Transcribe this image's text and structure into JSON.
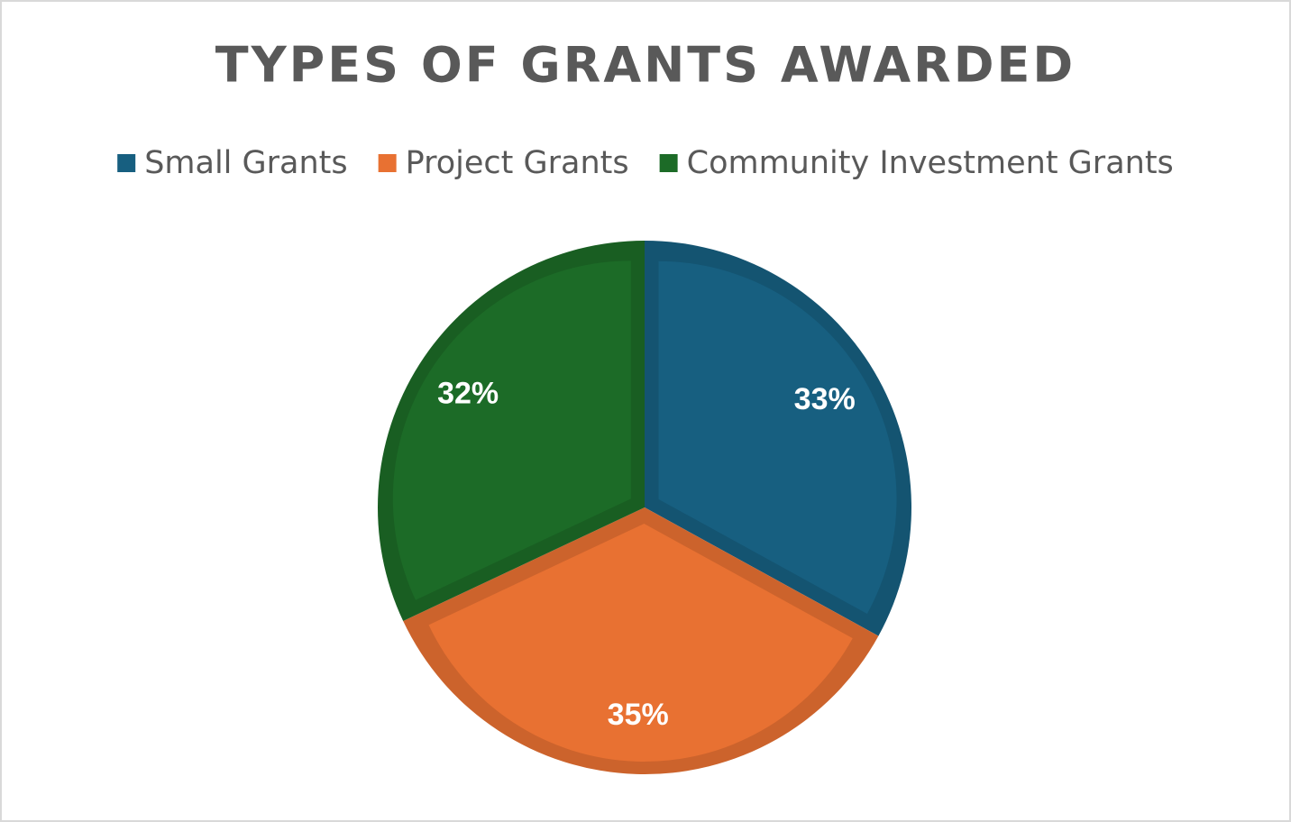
{
  "chart_data": {
    "type": "pie",
    "title": "TYPES OF GRANTS AWARDED",
    "categories": [
      "Small Grants",
      "Project Grants",
      "Community Investment Grants"
    ],
    "values": [
      33,
      35,
      32
    ],
    "value_labels": [
      "33%",
      "35%",
      "32%"
    ],
    "colors": [
      "#175f80",
      "#e87132",
      "#1c6b27"
    ],
    "legend": "top"
  }
}
